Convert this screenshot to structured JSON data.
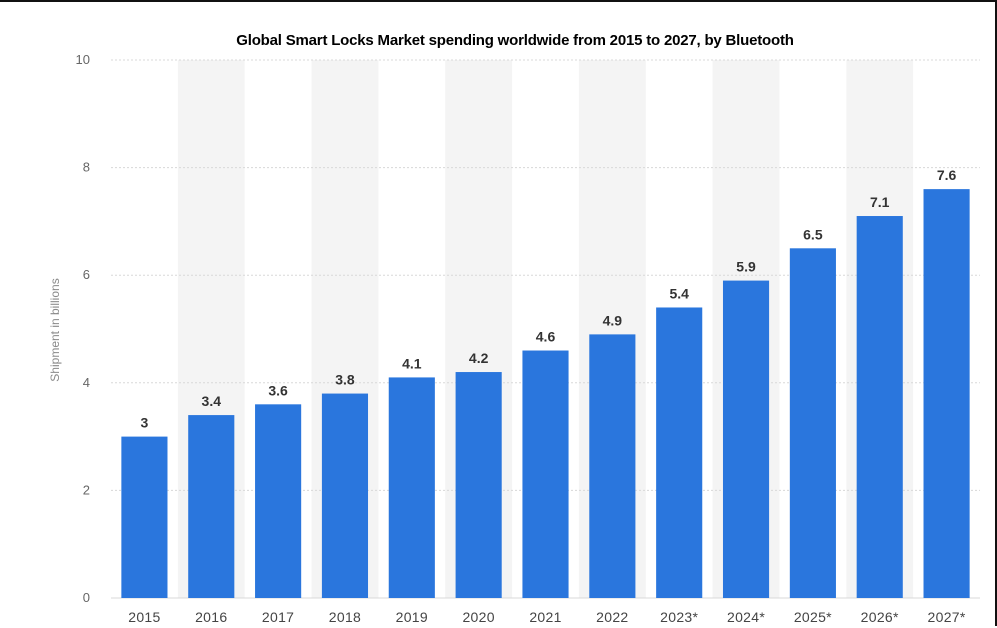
{
  "chart_data": {
    "type": "bar",
    "title": "Global Smart Locks Market spending worldwide from 2015 to 2027, by Bluetooth",
    "xlabel": "",
    "ylabel": "Shipment in billions",
    "categories": [
      "2015",
      "2016",
      "2017",
      "2018",
      "2019",
      "2020",
      "2021",
      "2022",
      "2023*",
      "2024*",
      "2025*",
      "2026*",
      "2027*"
    ],
    "values": [
      3,
      3.4,
      3.6,
      3.8,
      4.1,
      4.2,
      4.6,
      4.9,
      5.4,
      5.9,
      6.5,
      7.1,
      7.6
    ],
    "value_labels": [
      "3",
      "3.4",
      "3.6",
      "3.8",
      "4.1",
      "4.2",
      "4.6",
      "4.9",
      "5.4",
      "5.9",
      "6.5",
      "7.1",
      "7.6"
    ],
    "yticks": [
      0,
      2,
      4,
      6,
      8,
      10
    ],
    "ytick_labels": [
      "0",
      "2",
      "4",
      "6",
      "8",
      "10"
    ],
    "ylim": [
      0,
      10
    ],
    "grid": true,
    "bar_color": "#2a76dd",
    "band_color": "#f4f4f4",
    "grid_color": "#d8d8d8"
  }
}
